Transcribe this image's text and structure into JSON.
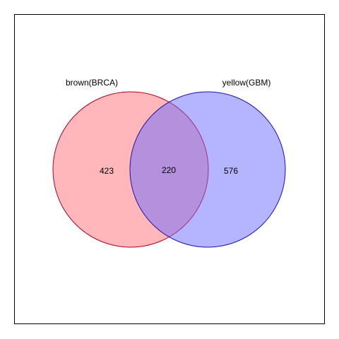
{
  "venn": {
    "sets": [
      {
        "label": "brown(BRCA)",
        "fill": "#ff6f78",
        "stroke": "#b0001a"
      },
      {
        "label": "yellow(GBM)",
        "fill": "#6b6bff",
        "stroke": "#1a12b8"
      }
    ],
    "counts": {
      "only_first": "423",
      "intersection": "220",
      "only_second": "576"
    },
    "border_color": "#000000"
  }
}
